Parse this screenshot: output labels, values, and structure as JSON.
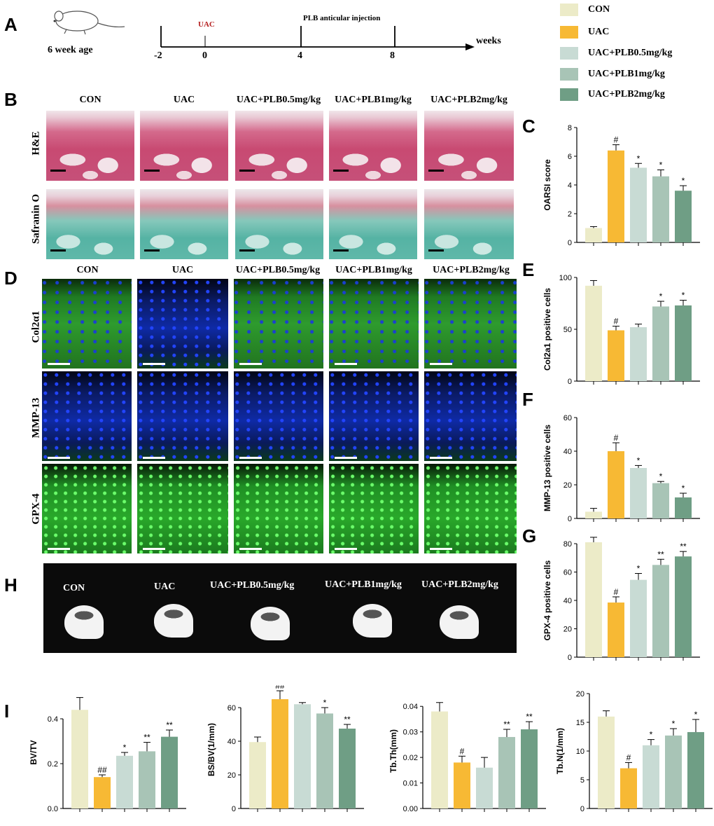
{
  "panels": {
    "A": "A",
    "B": "B",
    "C": "C",
    "D": "D",
    "E": "E",
    "F": "F",
    "G": "G",
    "H": "H",
    "I": "I"
  },
  "timeline": {
    "age_label": "6 week age",
    "uac_label": "UAC",
    "injection_label": "PLB anticular injection",
    "weeks_label": "weeks",
    "ticks": [
      "-2",
      "0",
      "4",
      "8"
    ]
  },
  "legend": [
    {
      "label": "CON",
      "color": "#ecebc8"
    },
    {
      "label": "UAC",
      "color": "#f7b934"
    },
    {
      "label": "UAC+PLB0.5mg/kg",
      "color": "#c8dbd4"
    },
    {
      "label": "UAC+PLB1mg/kg",
      "color": "#a8c4b6"
    },
    {
      "label": "UAC+PLB2mg/kg",
      "color": "#6f9e85"
    }
  ],
  "groups": [
    "CON",
    "UAC",
    "UAC+PLB0.5mg/kg",
    "UAC+PLB1mg/kg",
    "UAC+PLB2mg/kg"
  ],
  "histology_rows": [
    "H&E",
    "Safranin O"
  ],
  "fluorescence_rows": [
    "Col2α1",
    "MMP-13",
    "GPX-4"
  ],
  "colors": {
    "con": "#ecebc8",
    "uac": "#f7b934",
    "plb05": "#c8dbd4",
    "plb1": "#a8c4b6",
    "plb2": "#6f9e85"
  },
  "chart_data": [
    {
      "id": "C",
      "type": "bar",
      "ylabel": "OARSI score",
      "ylim": [
        0,
        8
      ],
      "yticks": [
        0,
        2,
        4,
        6,
        8
      ],
      "values": [
        1.0,
        6.4,
        5.2,
        4.6,
        3.6
      ],
      "errors": [
        0.1,
        0.4,
        0.3,
        0.45,
        0.35
      ],
      "markers": [
        "",
        "#",
        "*",
        "*",
        "*"
      ]
    },
    {
      "id": "E",
      "type": "bar",
      "ylabel": "Col2a1 positive cells",
      "ylim": [
        0,
        100
      ],
      "yticks": [
        0,
        50,
        100
      ],
      "values": [
        92,
        49,
        52,
        72,
        73
      ],
      "errors": [
        5,
        4,
        3,
        5,
        5
      ],
      "markers": [
        "",
        "#",
        "",
        "*",
        "*"
      ]
    },
    {
      "id": "F",
      "type": "bar",
      "ylabel": "MMP-13 positive cells",
      "ylim": [
        0,
        60
      ],
      "yticks": [
        0,
        20,
        40,
        60
      ],
      "values": [
        4,
        40,
        30,
        21,
        12.5
      ],
      "errors": [
        2,
        5,
        1.5,
        1,
        2.5
      ],
      "markers": [
        "",
        "#",
        "*",
        "*",
        "*"
      ]
    },
    {
      "id": "G",
      "type": "bar",
      "ylabel": "GPX-4 positive cells",
      "ylim": [
        0,
        80
      ],
      "yticks": [
        0,
        20,
        40,
        60,
        80
      ],
      "values": [
        81,
        38.5,
        54.5,
        65,
        71
      ],
      "errors": [
        3.5,
        4,
        4.5,
        4,
        3.5
      ],
      "markers": [
        "",
        "#",
        "*",
        "**",
        "**"
      ]
    },
    {
      "id": "I1",
      "type": "bar",
      "ylabel": "BV/TV",
      "ylim": [
        0,
        0.5
      ],
      "yticks": [
        0.0,
        0.2,
        0.4
      ],
      "tickdec": 1,
      "values": [
        0.44,
        0.14,
        0.235,
        0.255,
        0.32
      ],
      "errors": [
        0.055,
        0.01,
        0.015,
        0.04,
        0.03
      ],
      "markers": [
        "",
        "##",
        "*",
        "**",
        "**"
      ]
    },
    {
      "id": "I2",
      "type": "bar",
      "ylabel": "BS/BV(1/mm)",
      "ylim": [
        0,
        70
      ],
      "yticks": [
        0,
        20,
        40,
        60
      ],
      "values": [
        39.5,
        65,
        62,
        56.5,
        47.5
      ],
      "errors": [
        3,
        5,
        1,
        3.5,
        2.5
      ],
      "markers": [
        "",
        "##",
        "",
        "*",
        "**"
      ]
    },
    {
      "id": "I3",
      "type": "bar",
      "ylabel": "Tb.Th(mm)",
      "ylim": [
        0,
        0.045
      ],
      "yticks": [
        0.0,
        0.01,
        0.02,
        0.03,
        0.04
      ],
      "tickdec": 2,
      "values": [
        0.038,
        0.018,
        0.016,
        0.028,
        0.031
      ],
      "errors": [
        0.0035,
        0.0025,
        0.004,
        0.003,
        0.003
      ],
      "markers": [
        "",
        "#",
        "",
        "**",
        "**"
      ]
    },
    {
      "id": "I4",
      "type": "bar",
      "ylabel": "Tb.N(1/mm)",
      "ylim": [
        0,
        20
      ],
      "yticks": [
        0,
        5,
        10,
        15,
        20
      ],
      "values": [
        16,
        7,
        11,
        12.7,
        13.3
      ],
      "errors": [
        1,
        1,
        1,
        1.2,
        2.2
      ],
      "markers": [
        "",
        "#",
        "*",
        "*",
        "*"
      ]
    }
  ]
}
